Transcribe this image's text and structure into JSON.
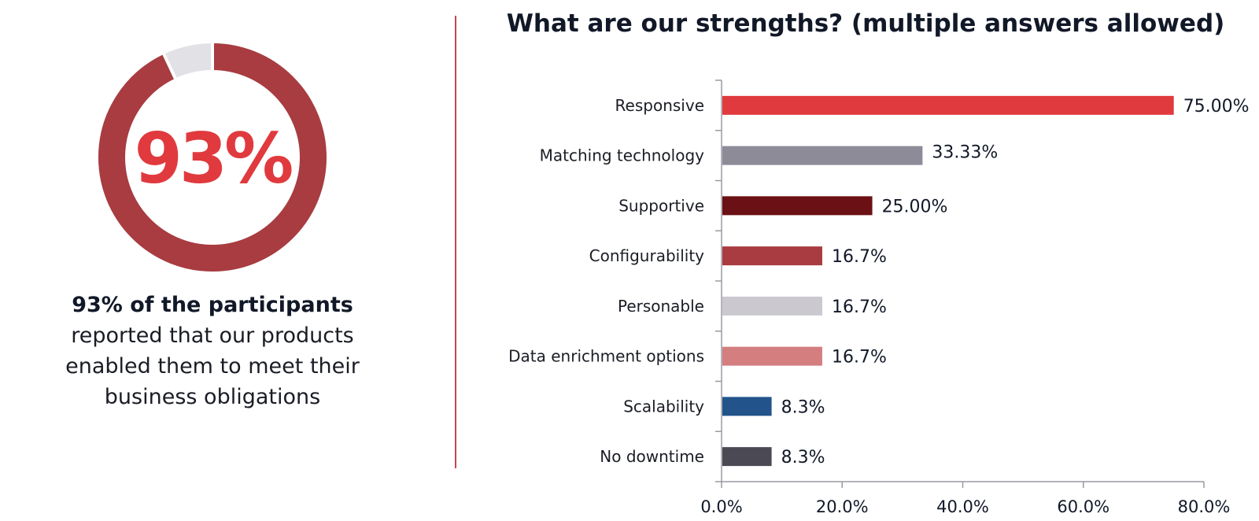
{
  "headline_stat": {
    "value_label": "93%",
    "percent": 93,
    "ring_color": "#a83c40",
    "remainder_color": "#e2e2e6",
    "text_color": "#e03a3e"
  },
  "summary": {
    "lead": "93% of the participants",
    "body": "reported that our products enabled them to meet their business obligations"
  },
  "chart_data": {
    "type": "bar",
    "orientation": "horizontal",
    "title": "What are our strengths? (multiple  answers allowed)",
    "categories": [
      "Responsive",
      "Matching technology",
      "Supportive",
      "Configurability",
      "Personable",
      "Data enrichment options",
      "Scalability",
      "No downtime"
    ],
    "values": [
      75.0,
      33.33,
      25.0,
      16.7,
      16.7,
      16.7,
      8.3,
      8.3
    ],
    "value_labels": [
      "75.00%",
      "33.33%",
      "25.00%",
      "16.7%",
      "16.7%",
      "16.7%",
      "8.3%",
      "8.3%"
    ],
    "colors": [
      "#e03a3e",
      "#8e8b99",
      "#6b1014",
      "#a83c40",
      "#cbc9cf",
      "#d47e80",
      "#22538a",
      "#4b4953"
    ],
    "xlim": [
      0,
      80
    ],
    "xticks": [
      0,
      20,
      40,
      60,
      80
    ],
    "xtick_labels": [
      "0.0%",
      "20.0%",
      "40.0%",
      "60.0%",
      "80.0%"
    ],
    "xlabel": "",
    "ylabel": "",
    "grid": false
  }
}
